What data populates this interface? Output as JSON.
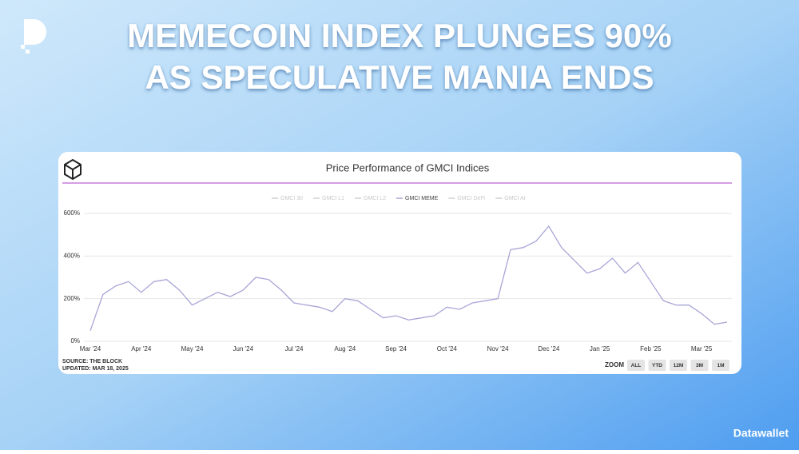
{
  "headline": [
    "MEMECOIN INDEX PLUNGES 90%",
    "AS SPECULATIVE MANIA ENDS"
  ],
  "brand": "Datawallet",
  "chart_data": {
    "type": "line",
    "title": "Price Performance of GMCI Indices",
    "categories": [
      "Mar '24",
      null,
      null,
      null,
      "Apr '24",
      null,
      null,
      null,
      "May '24",
      null,
      null,
      null,
      "Jun '24",
      null,
      null,
      null,
      "Jul '24",
      null,
      null,
      null,
      "Aug '24",
      null,
      null,
      null,
      "Sep '24",
      null,
      null,
      null,
      "Oct '24",
      null,
      null,
      null,
      "Nov '24",
      null,
      null,
      null,
      "Dec '24",
      null,
      null,
      null,
      "Jan '25",
      null,
      null,
      null,
      "Feb '25",
      null,
      null,
      null,
      "Mar '25",
      null,
      null
    ],
    "series": [
      {
        "name": "GMCI MEME",
        "color": "#a9a6d6",
        "values": [
          50,
          220,
          260,
          280,
          230,
          280,
          290,
          240,
          170,
          200,
          230,
          210,
          240,
          300,
          290,
          240,
          180,
          170,
          160,
          140,
          200,
          190,
          150,
          110,
          120,
          100,
          110,
          120,
          160,
          150,
          180,
          190,
          200,
          430,
          440,
          470,
          540,
          440,
          380,
          320,
          340,
          390,
          320,
          370,
          280,
          190,
          170,
          170,
          130,
          80,
          90
        ]
      }
    ],
    "hidden_series": [
      "GMCI 30",
      "GMCI L1",
      "GMCI L2",
      "GMCI DeFi",
      "GMCI AI"
    ],
    "ylim": [
      0,
      600
    ],
    "yticks": [
      {
        "value": 0,
        "label": "0%"
      },
      {
        "value": 200,
        "label": "200%"
      },
      {
        "value": 400,
        "label": "400%"
      },
      {
        "value": 600,
        "label": "600%"
      }
    ],
    "grid": true,
    "source": "SOURCE: THE BLOCK",
    "updated": "UPDATED: MAR 18, 2025",
    "zoom_label": "ZOOM",
    "zoom_buttons": [
      "ALL",
      "YTD",
      "12M",
      "3M",
      "1M"
    ]
  }
}
